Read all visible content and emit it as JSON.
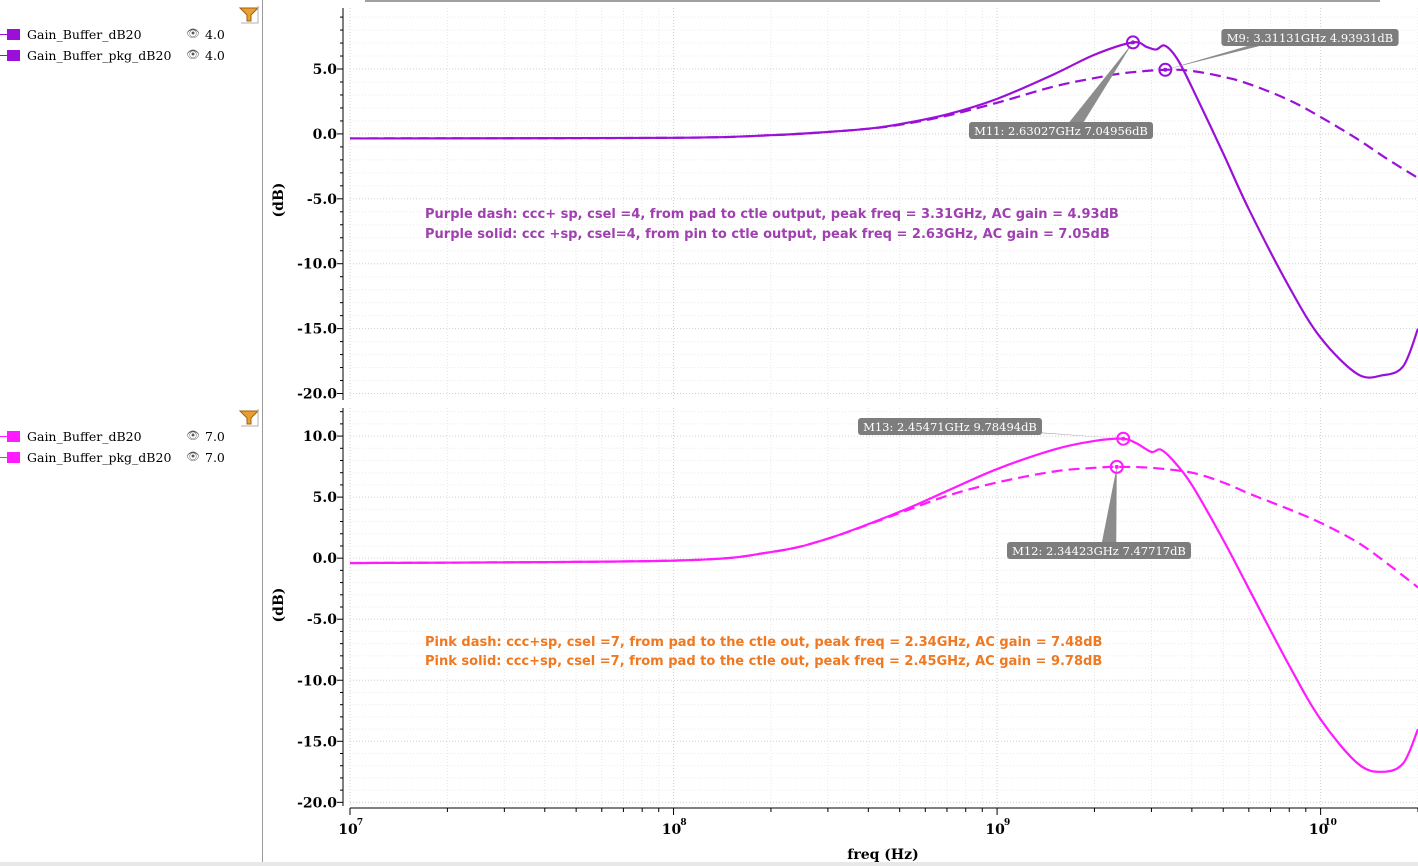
{
  "legends": [
    {
      "items": [
        {
          "name": "Gain_Buffer_dB20",
          "value": "4.0",
          "color": "#9b10d8",
          "style": "solid"
        },
        {
          "name": "Gain_Buffer_pkg_dB20",
          "value": "4.0",
          "color": "#9b10d8",
          "style": "dash"
        }
      ]
    },
    {
      "items": [
        {
          "name": "Gain_Buffer_dB20",
          "value": "7.0",
          "color": "#ff1aff",
          "style": "solid"
        },
        {
          "name": "Gain_Buffer_pkg_dB20",
          "value": "7.0",
          "color": "#ff1aff",
          "style": "dash"
        }
      ]
    }
  ],
  "chart_data": [
    {
      "type": "line",
      "xscale": "log",
      "xlim": [
        10000000.0,
        20000000000.0
      ],
      "ylim": [
        -20.5,
        9.7
      ],
      "yticks": [
        5.0,
        0.0,
        -5.0,
        -10.0,
        -15.0,
        -20.0
      ],
      "ytick_labels": [
        "5.0",
        "0.0",
        "-5.0",
        "-10.0",
        "-15.0",
        "-20.0"
      ],
      "ylabel": "(dB)",
      "grid": true,
      "color": "#9b10d8",
      "series": [
        {
          "name": "Gain_Buffer_dB20",
          "style": "solid",
          "x": [
            10000000.0,
            100000000.0,
            200000000.0,
            300000000.0,
            400000000.0,
            500000000.0,
            700000000.0,
            1000000000.0,
            1500000000.0,
            2000000000.0,
            2630000000.0,
            2900000000.0,
            3100000000.0,
            3300000000.0,
            3600000000.0,
            4000000000.0,
            5000000000.0,
            6000000000.0,
            8000000000.0,
            10000000000.0,
            13000000000.0,
            15500000000.0,
            18000000000.0,
            20000000000.0
          ],
          "y": [
            -0.35,
            -0.3,
            -0.1,
            0.15,
            0.4,
            0.75,
            1.5,
            2.7,
            4.6,
            6.1,
            7.05,
            6.7,
            6.5,
            6.8,
            5.8,
            3.6,
            -1.5,
            -5.8,
            -11.8,
            -15.7,
            -18.5,
            -18.6,
            -17.9,
            -15.0
          ]
        },
        {
          "name": "Gain_Buffer_pkg_dB20",
          "style": "dash",
          "x": [
            10000000.0,
            100000000.0,
            200000000.0,
            300000000.0,
            400000000.0,
            500000000.0,
            700000000.0,
            1000000000.0,
            1500000000.0,
            2000000000.0,
            2500000000.0,
            3310000000.0,
            4000000000.0,
            5000000000.0,
            6000000000.0,
            8000000000.0,
            10000000000.0,
            13000000000.0,
            16000000000.0,
            20000000000.0
          ],
          "y": [
            -0.35,
            -0.3,
            -0.1,
            0.15,
            0.4,
            0.7,
            1.4,
            2.4,
            3.65,
            4.3,
            4.7,
            4.94,
            4.85,
            4.4,
            3.85,
            2.6,
            1.3,
            -0.4,
            -1.9,
            -3.4
          ]
        }
      ],
      "annotations": [
        {
          "text": "Purple dash: ccc+ sp, csel =4, from pad to ctle output, peak freq = 3.31GHz, AC gain = 4.93dB",
          "color": "#a040b0"
        },
        {
          "text": "Purple solid: ccc +sp, csel=4, from pin to ctle output, peak freq = 2.63GHz,  AC gain = 7.05dB",
          "color": "#a040b0"
        }
      ],
      "markers": [
        {
          "label": "M9: 3.31131GHz 4.93931dB",
          "x": 3311310000.0,
          "y": 4.93931
        },
        {
          "label": "M11: 2.63027GHz 7.04956dB",
          "x": 2630270000.0,
          "y": 7.04956
        }
      ]
    },
    {
      "type": "line",
      "xscale": "log",
      "xlim": [
        10000000.0,
        20000000000.0
      ],
      "ylim": [
        -20.3,
        12.3
      ],
      "yticks": [
        10.0,
        5.0,
        0.0,
        -5.0,
        -10.0,
        -15.0,
        -20.0
      ],
      "ytick_labels": [
        "10.0",
        "5.0",
        "0.0",
        "-5.0",
        "-10.0",
        "-15.0",
        "-20.0"
      ],
      "ylabel": "(dB)",
      "xlabel": "freq (Hz)",
      "xtick_labels": [
        "10",
        "10",
        "10",
        "10"
      ],
      "xtick_exponents": [
        "7",
        "8",
        "9",
        "10"
      ],
      "grid": true,
      "color": "#ff1aff",
      "series": [
        {
          "name": "Gain_Buffer_dB20",
          "style": "solid",
          "x": [
            10000000.0,
            100000000.0,
            200000000.0,
            300000000.0,
            500000000.0,
            700000000.0,
            1000000000.0,
            1500000000.0,
            2000000000.0,
            2450000000.0,
            2700000000.0,
            3000000000.0,
            3200000000.0,
            3500000000.0,
            4000000000.0,
            5000000000.0,
            6000000000.0,
            8000000000.0,
            10000000000.0,
            13000000000.0,
            15500000000.0,
            18000000000.0,
            20000000000.0
          ],
          "y": [
            -0.4,
            -0.2,
            0.5,
            1.6,
            3.8,
            5.5,
            7.3,
            8.9,
            9.6,
            9.78,
            9.4,
            8.7,
            8.9,
            8.0,
            6.0,
            1.5,
            -2.5,
            -8.8,
            -13.2,
            -16.8,
            -17.5,
            -16.8,
            -14.0
          ]
        },
        {
          "name": "Gain_Buffer_pkg_dB20",
          "style": "dash",
          "x": [
            10000000.0,
            100000000.0,
            200000000.0,
            300000000.0,
            500000000.0,
            700000000.0,
            1000000000.0,
            1500000000.0,
            2000000000.0,
            2340000000.0,
            3000000000.0,
            4000000000.0,
            5000000000.0,
            6000000000.0,
            8000000000.0,
            10000000000.0,
            13000000000.0,
            16000000000.0,
            20000000000.0
          ],
          "y": [
            -0.4,
            -0.2,
            0.5,
            1.6,
            3.7,
            5.1,
            6.2,
            7.1,
            7.4,
            7.48,
            7.4,
            7.0,
            6.2,
            5.3,
            4.0,
            2.9,
            1.3,
            -0.4,
            -2.4
          ]
        }
      ],
      "annotations": [
        {
          "text": "Pink dash: ccc+sp, csel =7, from pad to the ctle out, peak freq = 2.34GHz,  AC gain = 7.48dB",
          "color": "#f07820"
        },
        {
          "text": "Pink solid: ccc+sp, csel =7, from pad to the ctle out, peak freq = 2.45GHz,  AC gain = 9.78dB",
          "color": "#f07820"
        }
      ],
      "markers": [
        {
          "label": "M13: 2.45471GHz 9.78494dB",
          "x": 2454710000.0,
          "y": 9.78494
        },
        {
          "label": "M12: 2.34423GHz 7.47717dB",
          "x": 2344230000.0,
          "y": 7.47717
        }
      ]
    }
  ]
}
